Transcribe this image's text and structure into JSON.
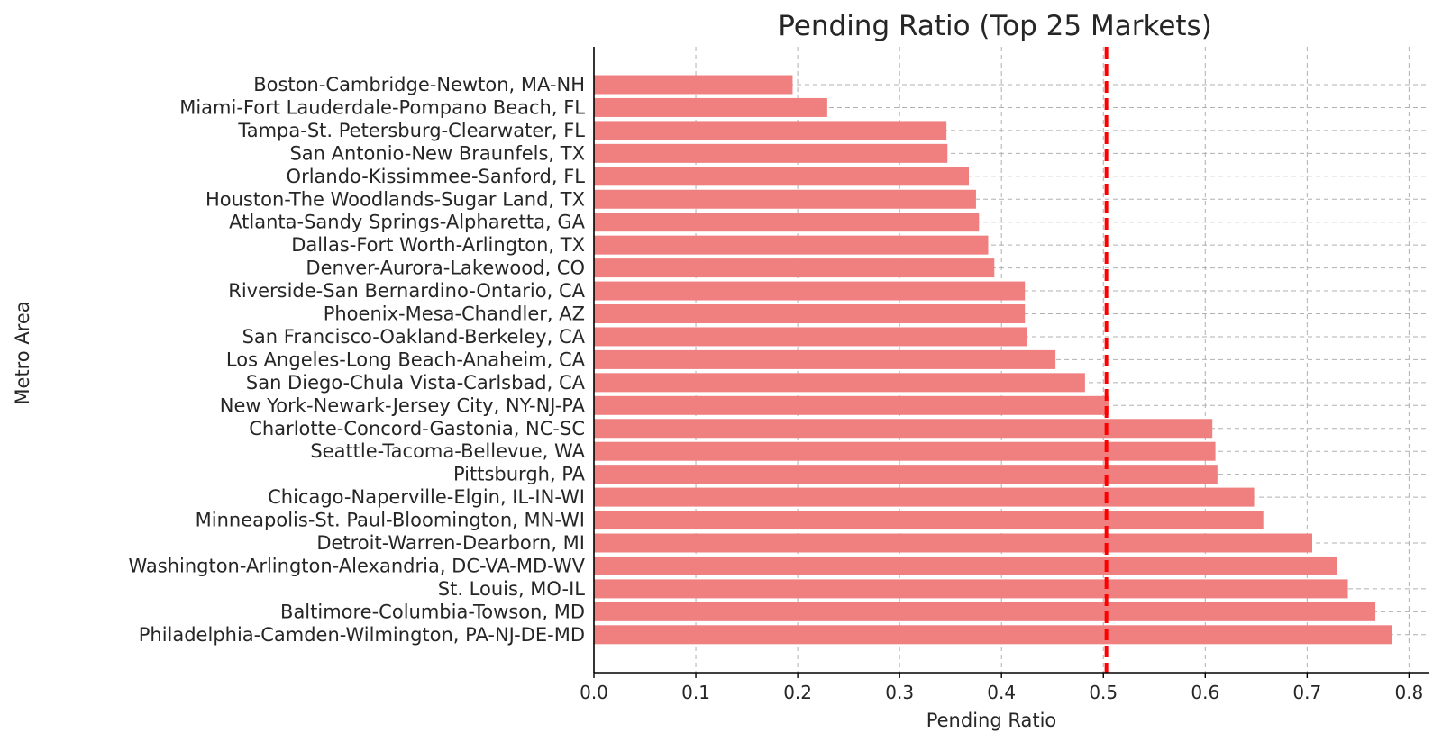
{
  "chart_data": {
    "type": "bar",
    "orientation": "horizontal",
    "title": "Pending Ratio (Top 25 Markets)",
    "xlabel": "Pending Ratio",
    "ylabel": "Metro Area",
    "xlim": [
      0,
      0.82
    ],
    "xticks": [
      0.0,
      0.1,
      0.2,
      0.3,
      0.4,
      0.5,
      0.6,
      0.7,
      0.8
    ],
    "xtick_labels": [
      "0.0",
      "0.1",
      "0.2",
      "0.3",
      "0.4",
      "0.5",
      "0.6",
      "0.7",
      "0.8"
    ],
    "grid": true,
    "bar_color": "#f08080",
    "reference_line": {
      "value": 0.503,
      "color": "#ff0000",
      "style": "dashed"
    },
    "categories": [
      "Boston-Cambridge-Newton, MA-NH",
      "Miami-Fort Lauderdale-Pompano Beach, FL",
      "Tampa-St. Petersburg-Clearwater, FL",
      "San Antonio-New Braunfels, TX",
      "Orlando-Kissimmee-Sanford, FL",
      "Houston-The Woodlands-Sugar Land, TX",
      "Atlanta-Sandy Springs-Alpharetta, GA",
      "Dallas-Fort Worth-Arlington, TX",
      "Denver-Aurora-Lakewood, CO",
      "Riverside-San Bernardino-Ontario, CA",
      "Phoenix-Mesa-Chandler, AZ",
      "San Francisco-Oakland-Berkeley, CA",
      "Los Angeles-Long Beach-Anaheim, CA",
      "San Diego-Chula Vista-Carlsbad, CA",
      "New York-Newark-Jersey City, NY-NJ-PA",
      "Charlotte-Concord-Gastonia, NC-SC",
      "Seattle-Tacoma-Bellevue, WA",
      "Pittsburgh, PA",
      "Chicago-Naperville-Elgin, IL-IN-WI",
      "Minneapolis-St. Paul-Bloomington, MN-WI",
      "Detroit-Warren-Dearborn, MI",
      "Washington-Arlington-Alexandria, DC-VA-MD-WV",
      "St. Louis, MO-IL",
      "Baltimore-Columbia-Towson, MD",
      "Philadelphia-Camden-Wilmington, PA-NJ-DE-MD"
    ],
    "values": [
      0.195,
      0.229,
      0.346,
      0.347,
      0.368,
      0.375,
      0.378,
      0.387,
      0.393,
      0.423,
      0.423,
      0.425,
      0.453,
      0.482,
      0.506,
      0.607,
      0.61,
      0.612,
      0.648,
      0.657,
      0.705,
      0.729,
      0.74,
      0.767,
      0.783
    ]
  }
}
